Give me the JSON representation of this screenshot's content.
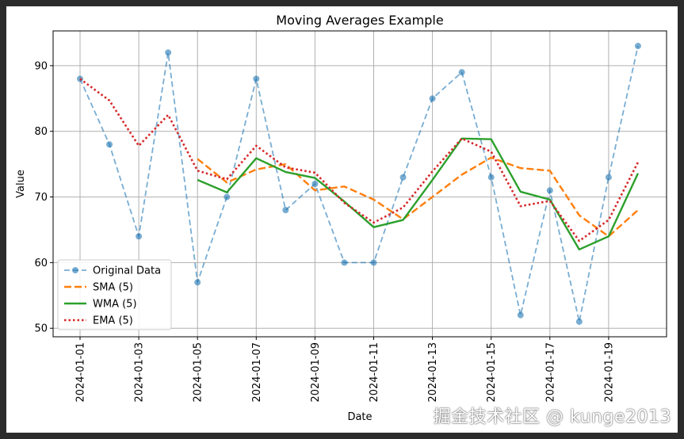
{
  "chart_data": {
    "type": "line",
    "title": "Moving Averages Example",
    "xlabel": "Date",
    "ylabel": "Value",
    "x": [
      "2024-01-01",
      "2024-01-02",
      "2024-01-03",
      "2024-01-04",
      "2024-01-05",
      "2024-01-06",
      "2024-01-07",
      "2024-01-08",
      "2024-01-09",
      "2024-01-10",
      "2024-01-11",
      "2024-01-12",
      "2024-01-13",
      "2024-01-14",
      "2024-01-15",
      "2024-01-16",
      "2024-01-17",
      "2024-01-18",
      "2024-01-19",
      "2024-01-20"
    ],
    "xticks": [
      "2024-01-01",
      "2024-01-03",
      "2024-01-05",
      "2024-01-07",
      "2024-01-09",
      "2024-01-11",
      "2024-01-13",
      "2024-01-15",
      "2024-01-17",
      "2024-01-19"
    ],
    "yticks": [
      50,
      60,
      70,
      80,
      90
    ],
    "ylim": [
      48.7,
      95.3
    ],
    "grid": true,
    "legend_position": "lower-left",
    "series": [
      {
        "name": "Original Data",
        "color": "#1f77b4",
        "style": "dashed-marker",
        "values": [
          88,
          78,
          64,
          92,
          57,
          70,
          88,
          68,
          72,
          60,
          60,
          73,
          85,
          89,
          73,
          52,
          71,
          51,
          73,
          93
        ]
      },
      {
        "name": "SMA (5)",
        "color": "#ff7f0e",
        "style": "dashed",
        "values": [
          null,
          null,
          null,
          null,
          75.8,
          72.2,
          74.2,
          75,
          71,
          71.6,
          69.6,
          66.6,
          70,
          73.4,
          76,
          74.4,
          74,
          67.2,
          64,
          68
        ]
      },
      {
        "name": "WMA (5)",
        "color": "#2ca02c",
        "style": "solid",
        "values": [
          null,
          null,
          null,
          null,
          72.6,
          70.7,
          75.9,
          73.8,
          72.9,
          69.3,
          65.4,
          66.5,
          72.6,
          78.9,
          78.8,
          70.8,
          69.6,
          62,
          64,
          73.6
        ]
      },
      {
        "name": "EMA (5)",
        "color": "#d62728",
        "style": "dotted",
        "values": [
          88,
          84.7,
          77.8,
          82.5,
          74,
          72.7,
          77.8,
          74.5,
          73.7,
          69.1,
          66.1,
          68.4,
          73.9,
          78.9,
          76.9,
          68.6,
          69.4,
          63.3,
          66.5,
          75.3
        ]
      }
    ]
  },
  "watermark": "掘金技术社区 @ kunge2013"
}
